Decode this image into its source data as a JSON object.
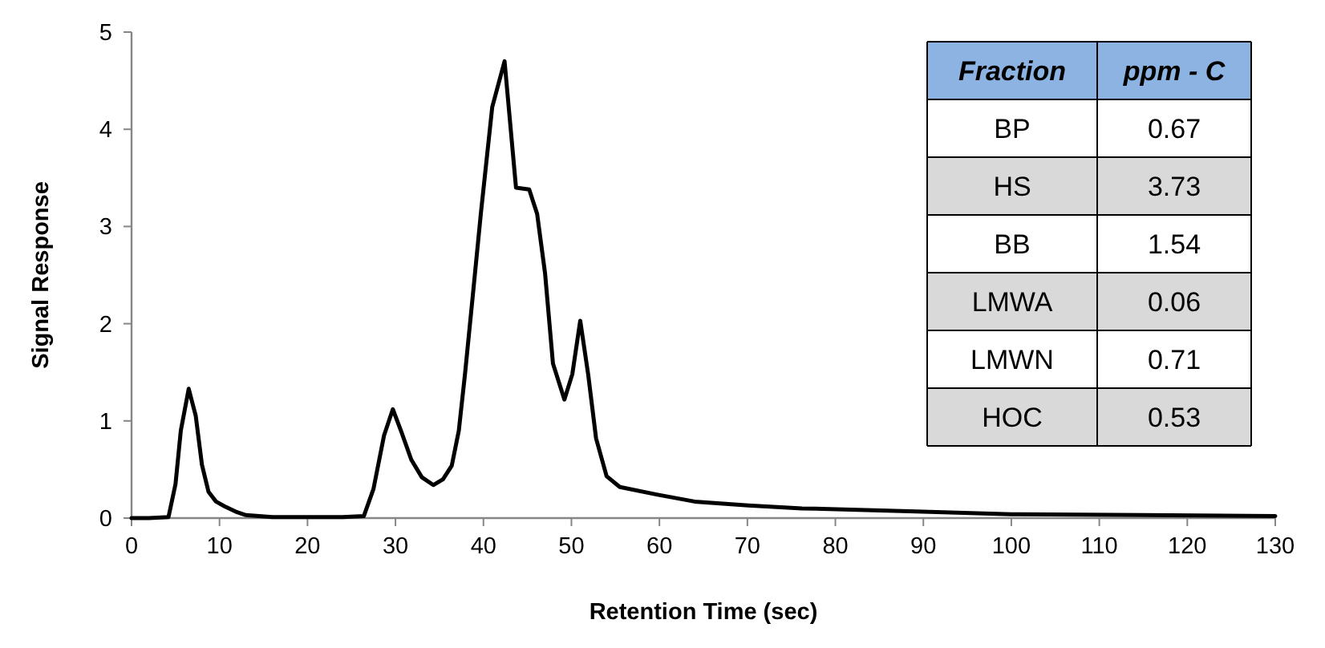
{
  "chart_data": [
    {
      "type": "line",
      "xlabel": "Retention Time (sec)",
      "ylabel": "Signal Response",
      "xlim": [
        0,
        130
      ],
      "ylim": [
        0,
        5
      ],
      "xticks": [
        0,
        10,
        20,
        30,
        40,
        50,
        60,
        70,
        80,
        90,
        100,
        110,
        120,
        130
      ],
      "yticks": [
        0,
        1,
        2,
        3,
        4,
        5
      ],
      "marker": "none",
      "line_style": "solid",
      "series": [
        {
          "color": "#000000",
          "x": [
            0,
            2,
            4.2,
            5,
            5.6,
            6.5,
            7.3,
            8,
            8.75,
            9.6,
            10.6,
            12,
            13,
            16,
            20,
            24,
            26.4,
            27.5,
            28.7,
            29.7,
            30.7,
            31.8,
            33,
            34.3,
            35.4,
            36.4,
            37.2,
            37.9,
            38.8,
            39.7,
            41,
            42.4,
            43.7,
            45.2,
            46.1,
            47,
            47.9,
            49.2,
            50.1,
            51,
            51.9,
            52.8,
            54,
            55.5,
            59.8,
            64,
            70.1,
            76.2,
            88.4,
            100,
            115,
            130
          ],
          "values": [
            0,
            0,
            0.01,
            0.35,
            0.9,
            1.33,
            1.05,
            0.55,
            0.27,
            0.17,
            0.12,
            0.06,
            0.03,
            0.01,
            0.01,
            0.01,
            0.02,
            0.3,
            0.85,
            1.12,
            0.88,
            0.6,
            0.42,
            0.34,
            0.4,
            0.54,
            0.9,
            1.48,
            2.3,
            3.13,
            4.23,
            4.7,
            3.4,
            3.38,
            3.13,
            2.52,
            1.59,
            1.22,
            1.48,
            2.03,
            1.48,
            0.82,
            0.43,
            0.32,
            0.24,
            0.17,
            0.13,
            0.1,
            0.07,
            0.04,
            0.03,
            0.02
          ]
        }
      ]
    },
    {
      "type": "other",
      "xlabel": "Fraction",
      "ylabel": "ppm - C",
      "categories": [
        "BP",
        "HS",
        "BB",
        "LMWA",
        "LMWN",
        "HOC"
      ],
      "values": [
        0.67,
        3.73,
        1.54,
        0.06,
        0.71,
        0.53
      ],
      "data_labels": true
    }
  ]
}
